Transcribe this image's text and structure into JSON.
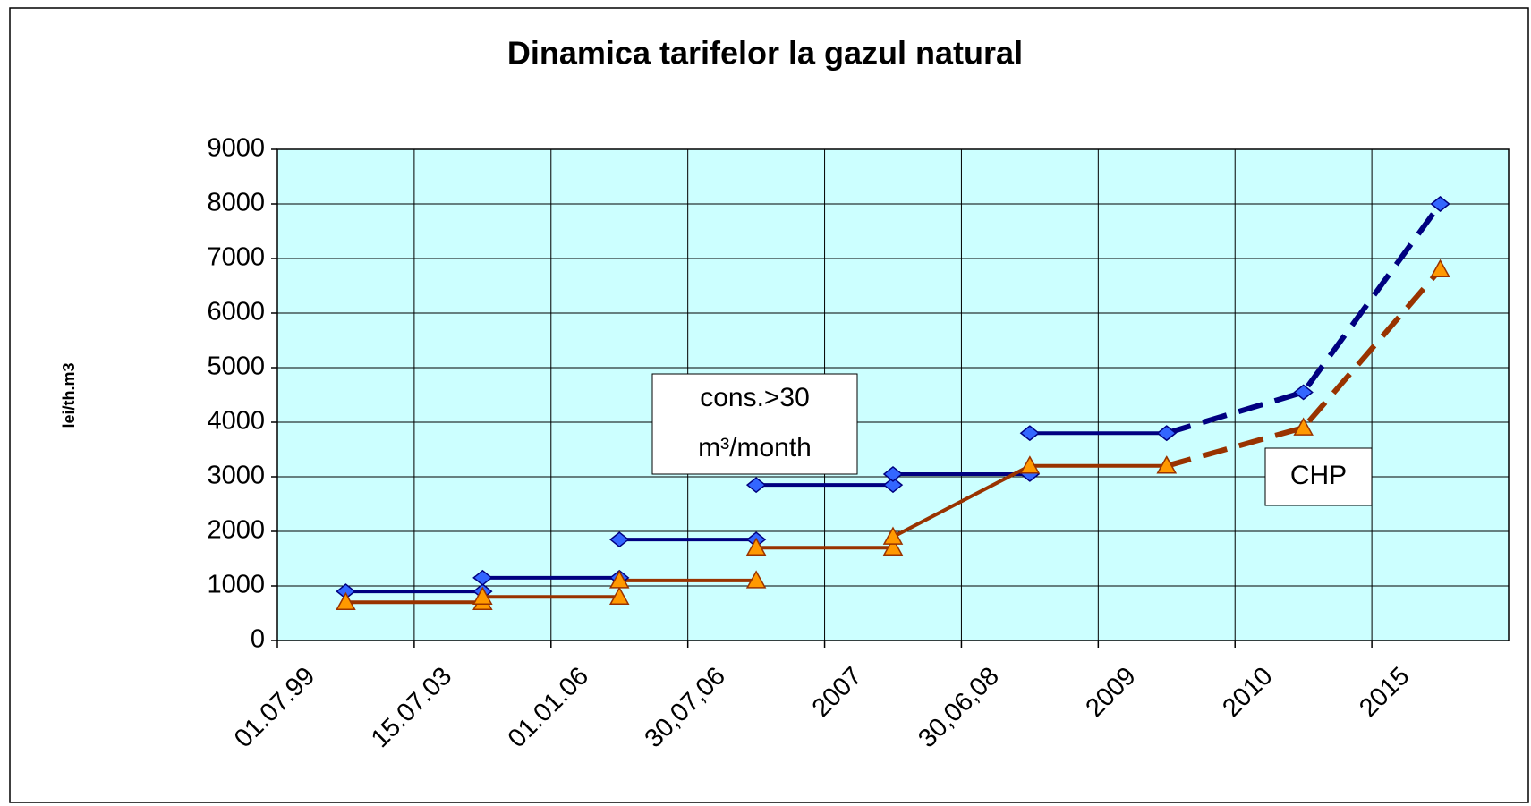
{
  "chart_data": {
    "type": "line",
    "title": "Dinamica tarifelor la gazul natural",
    "y_label": "lei/th.m3",
    "categories": [
      "01.07.99",
      "15.07.03",
      "01.01.06",
      "30,07,06",
      "2007",
      "30,06,08",
      "2009",
      "2010",
      "2015"
    ],
    "ylim": [
      0,
      9000
    ],
    "yticks": [
      0,
      1000,
      2000,
      3000,
      4000,
      5000,
      6000,
      7000,
      8000,
      9000
    ],
    "grid": true,
    "plot_background": "#ccffff",
    "annotations": [
      {
        "lines": [
          "cons.>30",
          "m³/month"
        ]
      },
      {
        "lines": [
          "CHP"
        ]
      }
    ],
    "series": [
      {
        "color": "#000080",
        "marker": "diamond",
        "marker_color": "#3366ff",
        "dashed": false,
        "values": [
          900,
          900,
          null,
          null,
          null,
          null,
          null,
          null,
          null
        ]
      },
      {
        "color": "#000080",
        "marker": "diamond",
        "marker_color": "#3366ff",
        "dashed": false,
        "values": [
          null,
          1150,
          1150,
          null,
          null,
          null,
          null,
          null,
          null
        ]
      },
      {
        "color": "#000080",
        "marker": "diamond",
        "marker_color": "#3366ff",
        "dashed": false,
        "values": [
          null,
          null,
          1850,
          1850,
          null,
          null,
          null,
          null,
          null
        ]
      },
      {
        "color": "#000080",
        "marker": "diamond",
        "marker_color": "#3366ff",
        "dashed": false,
        "values": [
          null,
          null,
          null,
          2850,
          2850,
          null,
          null,
          null,
          null
        ]
      },
      {
        "color": "#000080",
        "marker": "diamond",
        "marker_color": "#3366ff",
        "dashed": false,
        "values": [
          null,
          null,
          null,
          null,
          3050,
          3050,
          null,
          null,
          null
        ]
      },
      {
        "color": "#000080",
        "marker": "diamond",
        "marker_color": "#3366ff",
        "dashed": false,
        "values": [
          null,
          null,
          null,
          null,
          null,
          3800,
          3800,
          null,
          null
        ]
      },
      {
        "color": "#000080",
        "marker": "diamond",
        "marker_color": "#3366ff",
        "dashed": true,
        "values": [
          null,
          null,
          null,
          null,
          null,
          null,
          3800,
          4550,
          8000
        ]
      },
      {
        "color": "#993300",
        "marker": "triangle",
        "marker_color": "#ff9900",
        "dashed": false,
        "values": [
          700,
          700,
          null,
          null,
          null,
          null,
          null,
          null,
          null
        ]
      },
      {
        "color": "#993300",
        "marker": "triangle",
        "marker_color": "#ff9900",
        "dashed": false,
        "values": [
          null,
          800,
          800,
          null,
          null,
          null,
          null,
          null,
          null
        ]
      },
      {
        "color": "#993300",
        "marker": "triangle",
        "marker_color": "#ff9900",
        "dashed": false,
        "values": [
          null,
          null,
          1100,
          1100,
          null,
          null,
          null,
          null,
          null
        ]
      },
      {
        "color": "#993300",
        "marker": "triangle",
        "marker_color": "#ff9900",
        "dashed": false,
        "values": [
          null,
          null,
          null,
          1700,
          1700,
          null,
          null,
          null,
          null
        ]
      },
      {
        "color": "#993300",
        "marker": "triangle",
        "marker_color": "#ff9900",
        "dashed": false,
        "values": [
          null,
          null,
          null,
          null,
          1900,
          3200,
          3200,
          null,
          null
        ]
      },
      {
        "color": "#993300",
        "marker": "triangle",
        "marker_color": "#ff9900",
        "dashed": true,
        "values": [
          null,
          null,
          null,
          null,
          null,
          null,
          3200,
          3900,
          6800
        ]
      }
    ]
  }
}
